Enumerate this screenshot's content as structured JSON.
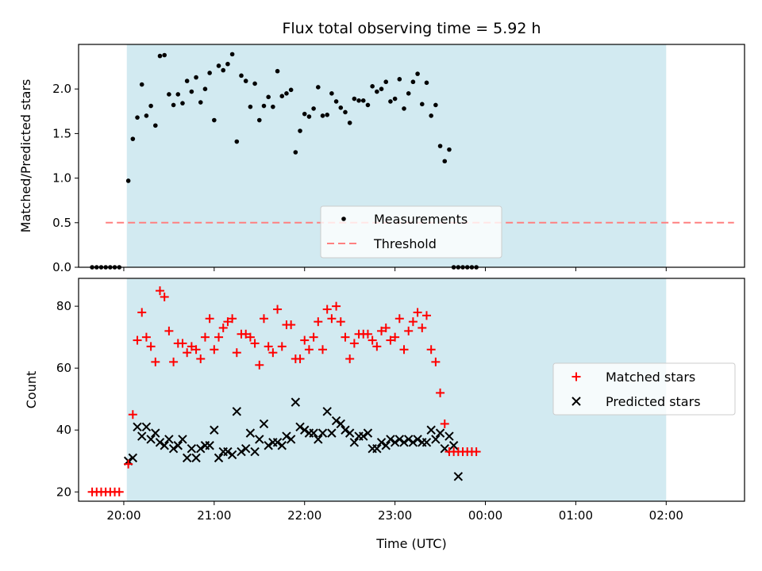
{
  "chart_data": [
    {
      "type": "scatter",
      "title": "Flux total observing time = 5.92 h",
      "ylabel": "Matched/Predicted stars",
      "xlabel": "",
      "xlim": [
        "19:30",
        "02:52"
      ],
      "ylim": [
        0,
        2.5
      ],
      "yticks": [
        0.0,
        0.5,
        1.0,
        1.5,
        2.0
      ],
      "ytick_labels": [
        "0.0",
        "0.5",
        "1.0",
        "1.5",
        "2.0"
      ],
      "shaded_interval": [
        "20:02",
        "02:00"
      ],
      "threshold": {
        "name": "Threshold",
        "value": 0.5,
        "x_range": [
          "19:48",
          "02:45"
        ],
        "color": "#ff8080"
      },
      "legend": {
        "placement": "lower-center",
        "entries": [
          "Measurements",
          "Threshold"
        ]
      },
      "series": [
        {
          "name": "Measurements",
          "color": "#000000",
          "points": [
            [
              "19:39",
              0
            ],
            [
              "19:42",
              0
            ],
            [
              "19:45",
              0
            ],
            [
              "19:48",
              0
            ],
            [
              "19:51",
              0
            ],
            [
              "19:54",
              0
            ],
            [
              "19:57",
              0
            ],
            [
              "20:03",
              0.97
            ],
            [
              "20:06",
              1.44
            ],
            [
              "20:09",
              1.68
            ],
            [
              "20:12",
              2.05
            ],
            [
              "20:15",
              1.7
            ],
            [
              "20:18",
              1.81
            ],
            [
              "20:21",
              1.59
            ],
            [
              "20:24",
              2.37
            ],
            [
              "20:27",
              2.38
            ],
            [
              "20:30",
              1.94
            ],
            [
              "20:33",
              1.82
            ],
            [
              "20:36",
              1.94
            ],
            [
              "20:39",
              1.84
            ],
            [
              "20:42",
              2.09
            ],
            [
              "20:45",
              1.97
            ],
            [
              "20:48",
              2.13
            ],
            [
              "20:51",
              1.85
            ],
            [
              "20:54",
              2.0
            ],
            [
              "20:57",
              2.18
            ],
            [
              "21:00",
              1.65
            ],
            [
              "21:03",
              2.26
            ],
            [
              "21:06",
              2.21
            ],
            [
              "21:09",
              2.28
            ],
            [
              "21:12",
              2.39
            ],
            [
              "21:15",
              1.41
            ],
            [
              "21:18",
              2.15
            ],
            [
              "21:21",
              2.09
            ],
            [
              "21:24",
              1.8
            ],
            [
              "21:27",
              2.06
            ],
            [
              "21:30",
              1.65
            ],
            [
              "21:33",
              1.81
            ],
            [
              "21:36",
              1.91
            ],
            [
              "21:39",
              1.8
            ],
            [
              "21:42",
              2.2
            ],
            [
              "21:45",
              1.92
            ],
            [
              "21:48",
              1.95
            ],
            [
              "21:51",
              1.99
            ],
            [
              "21:54",
              1.29
            ],
            [
              "21:57",
              1.53
            ],
            [
              "22:00",
              1.72
            ],
            [
              "22:03",
              1.69
            ],
            [
              "22:06",
              1.78
            ],
            [
              "22:09",
              2.02
            ],
            [
              "22:12",
              1.7
            ],
            [
              "22:15",
              1.71
            ],
            [
              "22:18",
              1.95
            ],
            [
              "22:21",
              1.86
            ],
            [
              "22:24",
              1.79
            ],
            [
              "22:27",
              1.74
            ],
            [
              "22:30",
              1.62
            ],
            [
              "22:33",
              1.89
            ],
            [
              "22:36",
              1.87
            ],
            [
              "22:39",
              1.87
            ],
            [
              "22:42",
              1.82
            ],
            [
              "22:45",
              2.03
            ],
            [
              "22:48",
              1.97
            ],
            [
              "22:51",
              2.0
            ],
            [
              "22:54",
              2.08
            ],
            [
              "22:57",
              1.86
            ],
            [
              "23:00",
              1.89
            ],
            [
              "23:03",
              2.11
            ],
            [
              "23:06",
              1.78
            ],
            [
              "23:09",
              1.95
            ],
            [
              "23:12",
              2.08
            ],
            [
              "23:15",
              2.17
            ],
            [
              "23:18",
              1.83
            ],
            [
              "23:21",
              2.07
            ],
            [
              "23:24",
              1.7
            ],
            [
              "23:27",
              1.82
            ],
            [
              "23:30",
              1.36
            ],
            [
              "23:33",
              1.19
            ],
            [
              "23:36",
              1.32
            ],
            [
              "23:39",
              0
            ],
            [
              "23:42",
              0
            ],
            [
              "23:45",
              0
            ],
            [
              "23:48",
              0
            ],
            [
              "23:51",
              0
            ],
            [
              "23:54",
              0
            ]
          ]
        }
      ]
    },
    {
      "type": "scatter",
      "title": "",
      "xlabel": "Time (UTC)",
      "ylabel": "Count",
      "xlim": [
        "19:30",
        "02:52"
      ],
      "ylim": [
        17,
        89
      ],
      "xticks": [
        "20:00",
        "21:00",
        "22:00",
        "23:00",
        "00:00",
        "01:00",
        "02:00"
      ],
      "yticks": [
        20,
        40,
        60,
        80
      ],
      "ytick_labels": [
        "20",
        "40",
        "60",
        "80"
      ],
      "shaded_interval": [
        "20:02",
        "02:00"
      ],
      "legend": {
        "placement": "right",
        "entries": [
          "Matched stars",
          "Predicted stars"
        ]
      },
      "series": [
        {
          "name": "Matched stars",
          "marker": "plus",
          "color": "#ff0000",
          "values": [
            20,
            20,
            20,
            20,
            20,
            20,
            20,
            29,
            45,
            69,
            78,
            70,
            67,
            62,
            85,
            83,
            72,
            62,
            68,
            68,
            65,
            67,
            66,
            63,
            70,
            76,
            66,
            70,
            73,
            75,
            76,
            65,
            71,
            71,
            70,
            68,
            61,
            76,
            67,
            65,
            79,
            67,
            74,
            74,
            63,
            63,
            69,
            66,
            70,
            75,
            66,
            79,
            76,
            80,
            75,
            70,
            63,
            68,
            71,
            71,
            71,
            69,
            67,
            72,
            73,
            69,
            70,
            76,
            66,
            72,
            75,
            78,
            73,
            77,
            66,
            62,
            52,
            42,
            33,
            33,
            33,
            33,
            33,
            33,
            33
          ]
        },
        {
          "name": "Predicted stars",
          "marker": "x",
          "color": "#000000",
          "values": [
            null,
            null,
            null,
            null,
            null,
            null,
            null,
            30,
            31,
            41,
            38,
            41,
            37,
            39,
            36,
            35,
            37,
            34,
            35,
            37,
            31,
            34,
            31,
            34,
            35,
            35,
            40,
            31,
            33,
            33,
            32,
            46,
            33,
            34,
            39,
            33,
            37,
            42,
            35,
            36,
            36,
            35,
            38,
            37,
            49,
            41,
            40,
            39,
            39,
            37,
            39,
            46,
            39,
            43,
            42,
            40,
            39,
            36,
            38,
            38,
            39,
            34,
            34,
            36,
            35,
            37,
            36,
            37,
            36,
            37,
            36,
            37,
            36,
            36,
            40,
            37,
            39,
            34,
            38,
            35,
            25,
            null,
            null,
            null,
            null
          ]
        }
      ]
    }
  ]
}
